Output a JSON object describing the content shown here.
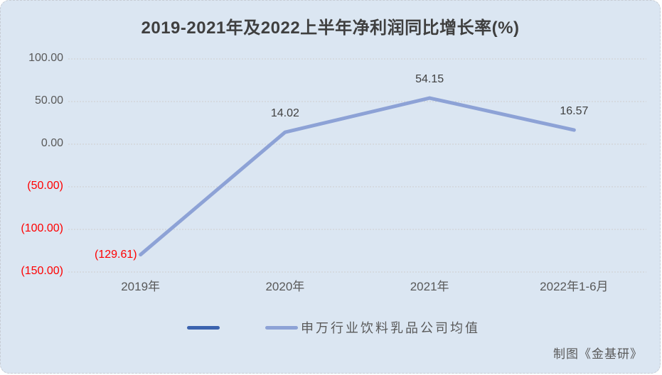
{
  "chart": {
    "title": "2019-2021年及2022上半年净利润同比增长率(%)",
    "credit": "制图《金基研》"
  },
  "legend": {
    "items": [
      {
        "label": "",
        "color": "#3b63ae"
      },
      {
        "label": "申万行业饮料乳品公司均值",
        "color": "#8da2d6"
      }
    ]
  },
  "chart_data": {
    "type": "line",
    "title": "2019-2021年及2022上半年净利润同比增长率(%)",
    "categories": [
      "2019年",
      "2020年",
      "2021年",
      "2022年1-6月"
    ],
    "series": [
      {
        "name": "",
        "values": [],
        "color": "#3b63ae"
      },
      {
        "name": "申万行业饮料乳品公司均值",
        "values": [
          -129.61,
          14.02,
          54.15,
          16.57
        ],
        "color": "#8da2d6"
      }
    ],
    "point_labels": [
      "(129.61)",
      "14.02",
      "54.15",
      "16.57"
    ],
    "y_ticks": [
      {
        "label": "100.00",
        "value": 100
      },
      {
        "label": "50.00",
        "value": 50
      },
      {
        "label": "0.00",
        "value": 0
      },
      {
        "label": "(50.00)",
        "value": -50
      },
      {
        "label": "(100.00)",
        "value": -100
      },
      {
        "label": "(150.00)",
        "value": -150
      }
    ],
    "ylim": [
      -150,
      100
    ],
    "grid": true,
    "legend_position": "bottom",
    "gridline_color": "#cfcfcf",
    "negative_color": "#ff0000",
    "label_color": "#404040",
    "background_color": "#dbe6f2"
  }
}
